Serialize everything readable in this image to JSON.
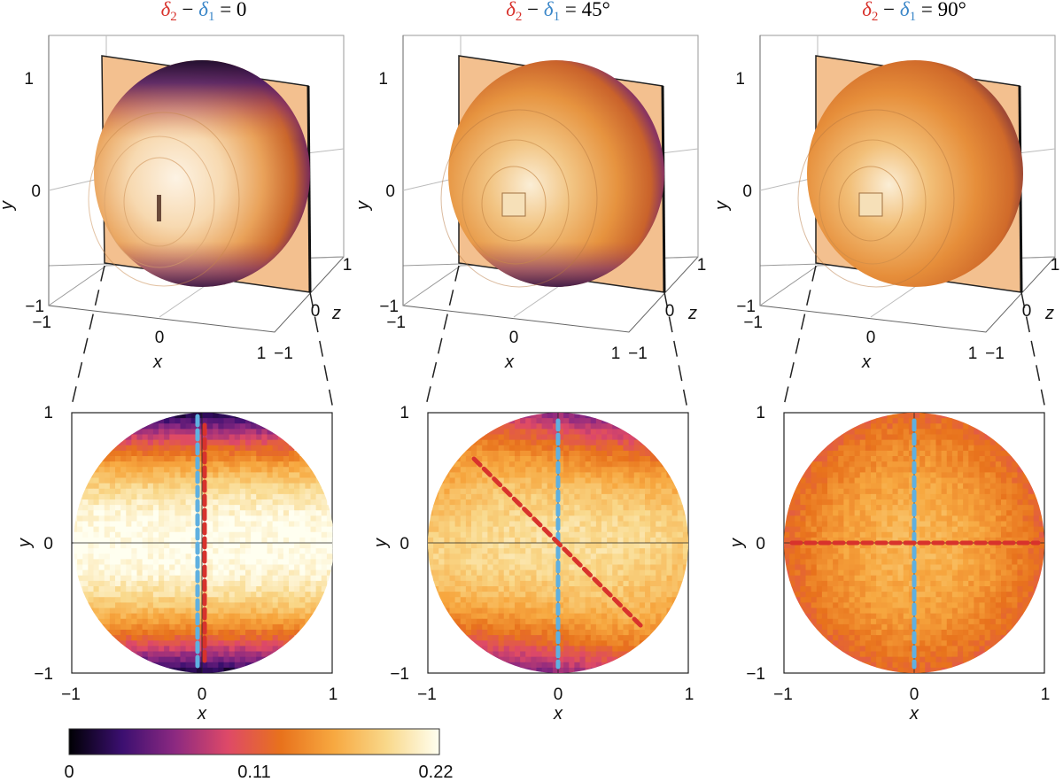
{
  "panels": [
    {
      "title": {
        "d2": "δ",
        "d2_sub": "2",
        "minus": " − ",
        "d1": "δ",
        "d1_sub": "1",
        "value": " = 0"
      },
      "mode": "0"
    },
    {
      "title": {
        "d2": "δ",
        "d2_sub": "2",
        "minus": " − ",
        "d1": "δ",
        "d1_sub": "1",
        "value": " = 45°"
      },
      "mode": "45"
    },
    {
      "title": {
        "d2": "δ",
        "d2_sub": "2",
        "minus": " − ",
        "d1": "δ",
        "d1_sub": "1",
        "value": " = 90°"
      },
      "mode": "90"
    }
  ],
  "axes3d": {
    "x_label": "x",
    "y_label": "y",
    "z_label": "z",
    "x_ticks": [
      "−1",
      "0",
      "1"
    ],
    "y_ticks": [
      "−1",
      "0",
      "1"
    ],
    "z_ticks": [
      "−1",
      "0",
      "1"
    ]
  },
  "axes2d": {
    "x_label": "x",
    "y_label": "y",
    "x_ticks": [
      "−1",
      "0",
      "1"
    ],
    "y_ticks": [
      "−1",
      "0",
      "1"
    ],
    "xlim": [
      -1,
      1
    ],
    "ylim": [
      -1,
      1
    ]
  },
  "colorbar": {
    "ticks": [
      "0",
      "0.11",
      "0.22"
    ],
    "range": [
      0,
      0.22
    ],
    "colors": [
      "#000004",
      "#3b0f70",
      "#8c2981",
      "#de4968",
      "#e8721c",
      "#f7a840",
      "#f9d88a",
      "#fffff0"
    ]
  },
  "colors": {
    "delta2": "#d8322c",
    "delta1": "#3a86c8",
    "red_line": "#d8322c",
    "blue_line": "#5fb0e0",
    "plane": "#f3c08f"
  }
}
